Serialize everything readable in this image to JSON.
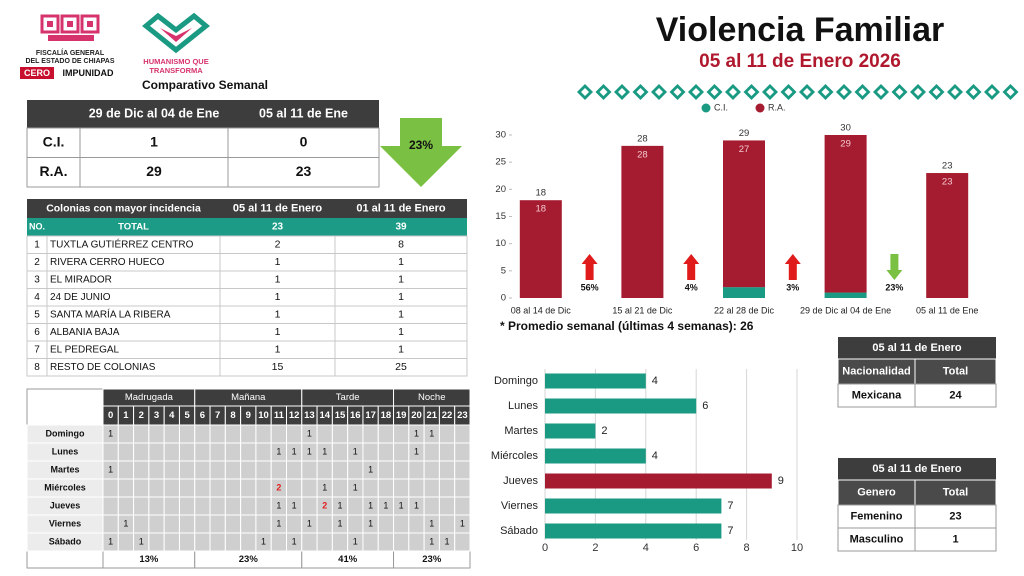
{
  "header": {
    "org_lines": [
      "FISCALÍA GENERAL",
      "DEL ESTADO DE CHIAPAS"
    ],
    "cero": "CERO",
    "impunidad": "IMPUNIDAD",
    "humanismo_lines": [
      "HUMANISMO QUE",
      "TRANSFORMA"
    ],
    "title": "Violencia Familiar",
    "subtitle": "05 al 11 de Enero 2026"
  },
  "comparison": {
    "title": "Comparativo Semanal",
    "columns": [
      "29 de Dic al 04 de Ene",
      "05 al 11 de Ene"
    ],
    "rows": [
      {
        "label": "C.I.",
        "values": [
          1,
          0
        ]
      },
      {
        "label": "R.A.",
        "values": [
          29,
          23
        ]
      }
    ],
    "change": "23%"
  },
  "colonias": {
    "columns": [
      "Colonias con mayor incidencia",
      "05 al 11 de Enero",
      "01 al 11 de Enero"
    ],
    "total_row": {
      "no": "NO.",
      "label": "TOTAL",
      "values": [
        23,
        39
      ]
    },
    "rows": [
      {
        "no": 1,
        "name": "TUXTLA GUTIÉRREZ CENTRO",
        "values": [
          2,
          8
        ]
      },
      {
        "no": 2,
        "name": "RIVERA CERRO HUECO",
        "values": [
          1,
          1
        ]
      },
      {
        "no": 3,
        "name": "EL MIRADOR",
        "values": [
          1,
          1
        ]
      },
      {
        "no": 4,
        "name": "24 DE JUNIO",
        "values": [
          1,
          1
        ]
      },
      {
        "no": 5,
        "name": "SANTA MARÍA LA RIBERA",
        "values": [
          1,
          1
        ]
      },
      {
        "no": 6,
        "name": "ALBANIA BAJA",
        "values": [
          1,
          1
        ]
      },
      {
        "no": 7,
        "name": "EL PEDREGAL",
        "values": [
          1,
          1
        ]
      },
      {
        "no": 8,
        "name": "RESTO DE COLONIAS",
        "values": [
          15,
          25
        ]
      }
    ]
  },
  "heatmap": {
    "periods": [
      {
        "name": "Madrugada",
        "hours": [
          0,
          1,
          2,
          3,
          4,
          5
        ],
        "share": "13%"
      },
      {
        "name": "Mañana",
        "hours": [
          6,
          7,
          8,
          9,
          10,
          11,
          12
        ],
        "share": "23%"
      },
      {
        "name": "Tarde",
        "hours": [
          13,
          14,
          15,
          16,
          17,
          18
        ],
        "share": "41%"
      },
      {
        "name": "Noche",
        "hours": [
          19,
          20,
          21,
          22,
          23
        ],
        "share": "23%"
      }
    ],
    "highlight_color": "#e02020",
    "rows": [
      {
        "day": "Domingo",
        "counts": [
          1,
          null,
          null,
          null,
          null,
          null,
          null,
          null,
          null,
          null,
          null,
          null,
          null,
          1,
          null,
          null,
          null,
          null,
          null,
          null,
          1,
          1,
          null,
          null
        ]
      },
      {
        "day": "Lunes",
        "counts": [
          null,
          null,
          null,
          null,
          null,
          null,
          null,
          null,
          null,
          null,
          null,
          1,
          1,
          1,
          1,
          null,
          1,
          null,
          null,
          null,
          1,
          null,
          null,
          null
        ]
      },
      {
        "day": "Martes",
        "counts": [
          1,
          null,
          null,
          null,
          null,
          null,
          null,
          null,
          null,
          null,
          null,
          null,
          null,
          null,
          null,
          null,
          null,
          1,
          null,
          null,
          null,
          null,
          null,
          null
        ]
      },
      {
        "day": "Miércoles",
        "counts": [
          null,
          null,
          null,
          null,
          null,
          null,
          null,
          null,
          null,
          null,
          null,
          2,
          null,
          null,
          1,
          null,
          1,
          null,
          null,
          null,
          null,
          null,
          null,
          null
        ]
      },
      {
        "day": "Jueves",
        "counts": [
          null,
          null,
          null,
          null,
          null,
          null,
          null,
          null,
          null,
          null,
          null,
          1,
          1,
          null,
          2,
          1,
          null,
          1,
          1,
          1,
          1,
          null,
          null,
          null
        ]
      },
      {
        "day": "Viernes",
        "counts": [
          null,
          1,
          null,
          null,
          null,
          null,
          null,
          null,
          null,
          null,
          null,
          1,
          null,
          1,
          null,
          1,
          null,
          1,
          null,
          null,
          null,
          1,
          null,
          1
        ]
      },
      {
        "day": "Sábado",
        "counts": [
          1,
          null,
          1,
          null,
          null,
          null,
          null,
          null,
          null,
          null,
          1,
          null,
          1,
          null,
          null,
          null,
          1,
          null,
          null,
          null,
          null,
          1,
          1,
          null
        ]
      }
    ]
  },
  "chart_data": [
    {
      "type": "bar",
      "orientation": "vertical",
      "stacked": true,
      "categories": [
        "08 al 14 de Dic",
        "15 al 21 de Dic",
        "22 al 28 de Dic",
        "29 de Dic al 04 de Ene",
        "05 al 11 de Ene"
      ],
      "series": [
        {
          "name": "C.I.",
          "color": "#1a9a82",
          "values": [
            0,
            0,
            2,
            1,
            0
          ]
        },
        {
          "name": "R.A.",
          "color": "#a51c30",
          "values": [
            18,
            28,
            27,
            29,
            23
          ]
        }
      ],
      "totals": [
        18,
        28,
        29,
        30,
        23
      ],
      "ylim": [
        0,
        30
      ],
      "yticks": [
        0,
        5,
        10,
        15,
        20,
        25,
        30
      ],
      "grid": false,
      "legend": "top",
      "annotations": [
        {
          "text": "56%",
          "direction": "up",
          "color": "#e01b1b"
        },
        {
          "text": "4%",
          "direction": "up",
          "color": "#e01b1b"
        },
        {
          "text": "3%",
          "direction": "up",
          "color": "#e01b1b"
        },
        {
          "text": "23%",
          "direction": "down",
          "color": "#7ac143"
        }
      ],
      "note": "* Promedio semanal (últimas 4 semanas): 26"
    },
    {
      "type": "bar",
      "orientation": "horizontal",
      "categories": [
        "Domingo",
        "Lunes",
        "Martes",
        "Miércoles",
        "Jueves",
        "Viernes",
        "Sábado"
      ],
      "values": [
        4,
        6,
        2,
        4,
        9,
        7,
        7
      ],
      "colors": [
        "#1a9a82",
        "#1a9a82",
        "#1a9a82",
        "#1a9a82",
        "#a51c30",
        "#1a9a82",
        "#1a9a82"
      ],
      "xlim": [
        0,
        10
      ],
      "xticks": [
        0,
        2,
        4,
        6,
        8,
        10
      ],
      "grid": true
    }
  ],
  "nationality": {
    "title": "05 al 11 de Enero",
    "columns": [
      "Nacionalidad",
      "Total"
    ],
    "rows": [
      [
        "Mexicana",
        24
      ]
    ]
  },
  "gender": {
    "title": "05 al 11 de Enero",
    "columns": [
      "Genero",
      "Total"
    ],
    "rows": [
      [
        "Femenino",
        23
      ],
      [
        "Masculino",
        1
      ]
    ]
  }
}
